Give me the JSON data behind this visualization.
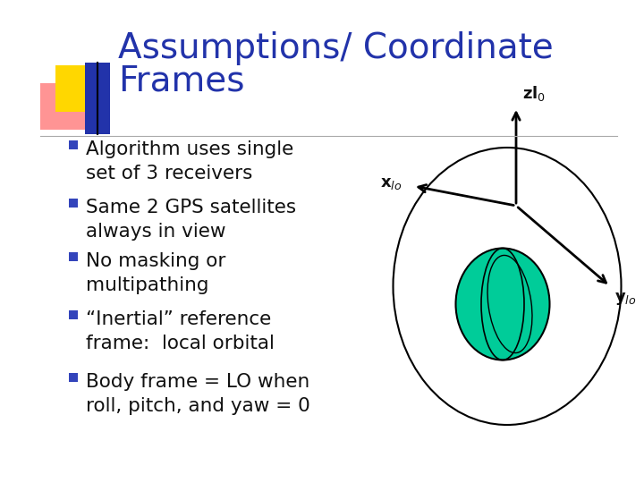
{
  "title_line1": "Assumptions/ Coordinate",
  "title_line2": "Frames",
  "title_color": "#2233AA",
  "title_fontsize": 28,
  "bg_color": "#FFFFFF",
  "bullet_color": "#3344BB",
  "bullet_fontsize": 15.5,
  "bullets": [
    "Algorithm uses single\nset of 3 receivers",
    "Same 2 GPS satellites\nalways in view",
    "No masking or\nmultipathing",
    "“Inertial” reference\nframe:  local orbital",
    "Body frame = LO when\nroll, pitch, and yaw = 0"
  ],
  "gold_color": "#FFD700",
  "red_color": "#FF8888",
  "blue_color": "#2233AA",
  "axis_color": "#000000",
  "ellipse_fill": "#00CC99",
  "ellipse_edge": "#000000",
  "separator_color": "#AAAAAA",
  "text_color": "#111111",
  "axis_label_fontsize": 13
}
